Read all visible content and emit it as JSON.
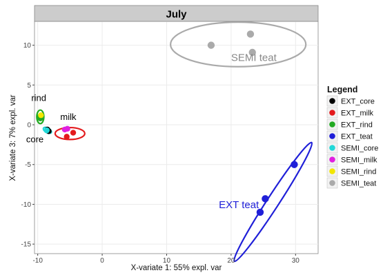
{
  "chart_data": {
    "type": "scatter",
    "facet_title": "July",
    "xlabel": "X-variate 1: 55% expl. var",
    "ylabel": "X-variate 3: 7% expl. var",
    "xlim": [
      -10.5,
      33.5
    ],
    "ylim": [
      -16.2,
      13.0
    ],
    "xticks": [
      -10,
      0,
      10,
      20,
      30
    ],
    "yticks": [
      -15,
      -10,
      -5,
      0,
      5,
      10
    ],
    "grid": true,
    "legend_title": "Legend",
    "legend_position": "right",
    "series": [
      {
        "name": "EXT_core",
        "color": "#000000",
        "points": [
          [
            -8.5,
            -0.6
          ],
          [
            -8.3,
            -0.8
          ]
        ]
      },
      {
        "name": "EXT_milk",
        "color": "#e31a1c",
        "points": [
          [
            -4.5,
            -1.0
          ],
          [
            -5.5,
            -1.5
          ]
        ]
      },
      {
        "name": "EXT_rind",
        "color": "#22aa22",
        "points": [
          [
            -9.7,
            1.0
          ],
          [
            -9.6,
            0.8
          ]
        ]
      },
      {
        "name": "EXT_teat",
        "color": "#1f1fd8",
        "points": [
          [
            29.8,
            -5.0
          ],
          [
            25.3,
            -9.3
          ],
          [
            24.5,
            -11.0
          ]
        ]
      },
      {
        "name": "SEMI_core",
        "color": "#22d8d8",
        "points": [
          [
            -8.6,
            -0.7
          ]
        ]
      },
      {
        "name": "SEMI_milk",
        "color": "#e020e0",
        "points": [
          [
            -5.8,
            -0.6
          ],
          [
            -5.4,
            -0.5
          ]
        ]
      },
      {
        "name": "SEMI_rind",
        "color": "#f2e600",
        "points": [
          [
            -9.5,
            1.2
          ]
        ]
      },
      {
        "name": "SEMI_teat",
        "color": "#aaaaaa",
        "points": [
          [
            16.9,
            10.0
          ],
          [
            23.0,
            11.4
          ],
          [
            23.3,
            9.1
          ]
        ]
      }
    ],
    "ellipses": [
      {
        "color": "#aaaaaa",
        "cx": 21.1,
        "cy": 10.1,
        "rx": 10.5,
        "ry": 2.8,
        "angle": 0
      },
      {
        "color": "#e31a1c",
        "cx": -5.0,
        "cy": -1.1,
        "rx": 2.3,
        "ry": 0.75,
        "angle": 0
      },
      {
        "color": "#22aa22",
        "cx": -9.6,
        "cy": 1.0,
        "rx": 0.55,
        "ry": 0.85,
        "angle": 0
      },
      {
        "color": "#22d8d8",
        "cx": -8.5,
        "cy": -0.7,
        "rx": 0.7,
        "ry": 0.3,
        "angle": -30
      },
      {
        "color": "#1f1fd8",
        "cx": 26.5,
        "cy": -9.7,
        "rx": 11.0,
        "ry": 0.75,
        "angle": 57
      }
    ],
    "annotations": [
      {
        "text": "SEMI teat",
        "x": 20.0,
        "y": 8.0,
        "color": "#888888",
        "size": 15
      },
      {
        "text": "EXT teat",
        "x": 18.1,
        "y": -10.5,
        "color": "#1f1fd8",
        "size": 15
      },
      {
        "text": "rind",
        "x": -11.0,
        "y": 3.0,
        "color": "#000000",
        "size": 13
      },
      {
        "text": "milk",
        "x": -6.5,
        "y": 0.6,
        "color": "#000000",
        "size": 13
      },
      {
        "text": "core",
        "x": -11.8,
        "y": -2.2,
        "color": "#000000",
        "size": 13
      }
    ]
  }
}
